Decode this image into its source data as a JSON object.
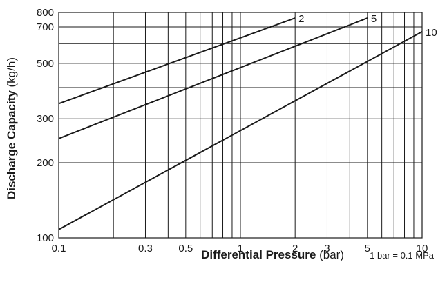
{
  "chart_data": {
    "type": "line",
    "xscale": "log",
    "yscale": "log",
    "xlim": [
      0.1,
      10
    ],
    "ylim": [
      100,
      800
    ],
    "grid": true,
    "xlabel": {
      "bold": "Differential Pressure",
      "unit": " (bar)"
    },
    "ylabel": {
      "bold": "Discharge Capacity",
      "unit": " (kg/h)"
    },
    "note": "1 bar = 0.1 MPa",
    "x_ticks": [
      {
        "value": 0.1,
        "label": "0.1"
      },
      {
        "value": 0.3,
        "label": "0.3"
      },
      {
        "value": 0.5,
        "label": "0.5"
      },
      {
        "value": 1,
        "label": "1"
      },
      {
        "value": 2,
        "label": "2"
      },
      {
        "value": 3,
        "label": "3"
      },
      {
        "value": 5,
        "label": "5"
      },
      {
        "value": 10,
        "label": "10"
      }
    ],
    "y_ticks": [
      {
        "value": 100,
        "label": "100"
      },
      {
        "value": 200,
        "label": "200"
      },
      {
        "value": 300,
        "label": "300"
      },
      {
        "value": 500,
        "label": "500"
      },
      {
        "value": 700,
        "label": "700"
      },
      {
        "value": 800,
        "label": "800"
      }
    ],
    "x_gridlines": [
      0.2,
      0.3,
      0.4,
      0.5,
      0.6,
      0.7,
      0.8,
      0.9,
      1,
      2,
      3,
      4,
      5,
      6,
      7,
      8,
      9
    ],
    "y_gridlines": [
      200,
      300,
      400,
      500,
      600,
      700
    ],
    "series": [
      {
        "name": "2",
        "x": [
          0.1,
          2
        ],
        "y": [
          345,
          760
        ]
      },
      {
        "name": "5",
        "x": [
          0.1,
          5
        ],
        "y": [
          250,
          760
        ]
      },
      {
        "name": "10",
        "x": [
          0.1,
          10
        ],
        "y": [
          108,
          670
        ]
      }
    ]
  }
}
